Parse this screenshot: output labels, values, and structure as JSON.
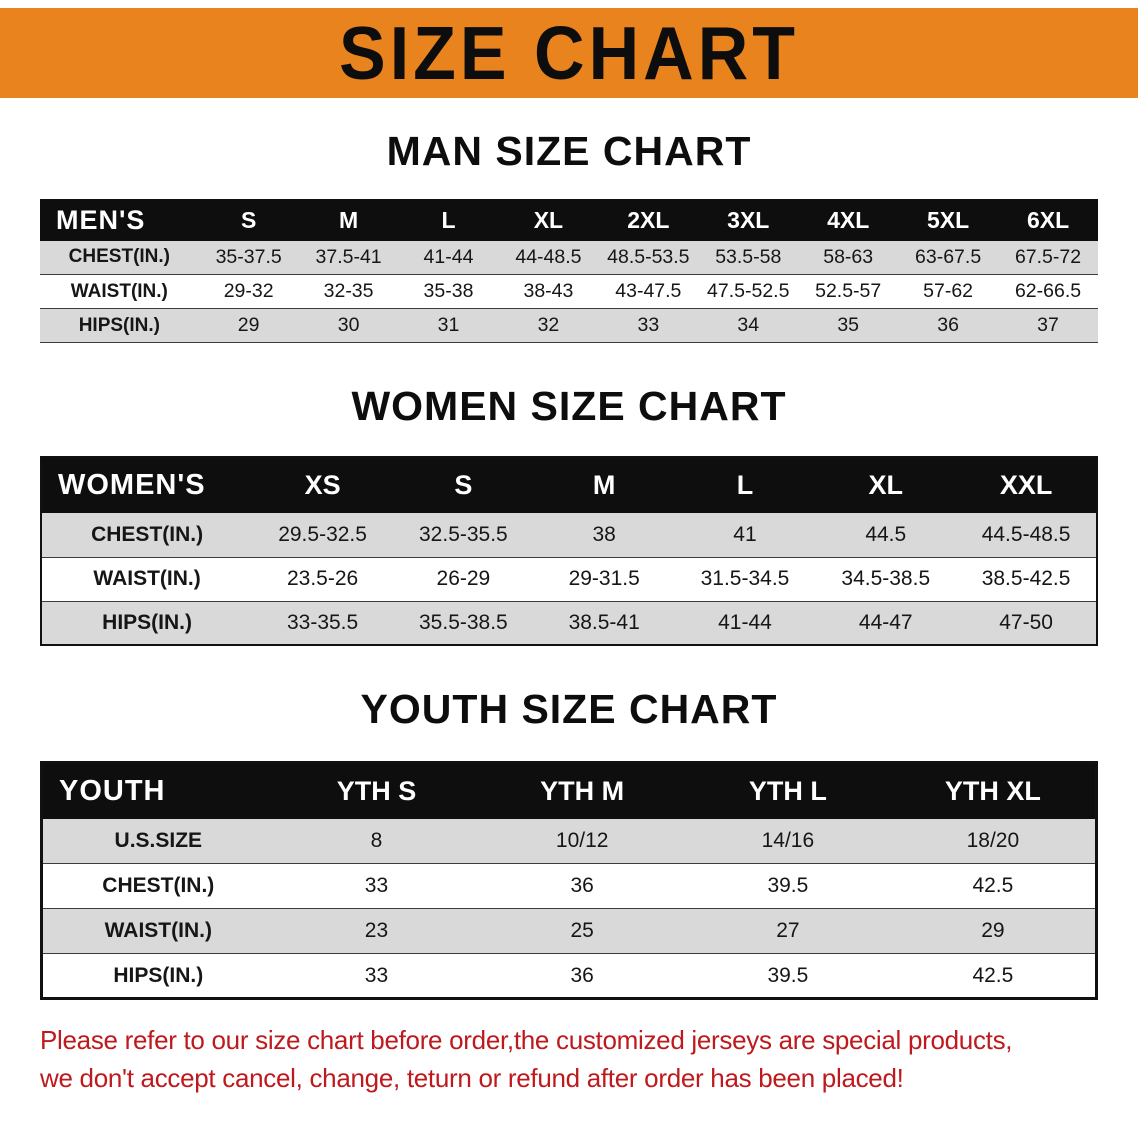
{
  "banner": {
    "title": "SIZE CHART"
  },
  "colors": {
    "banner_bg": "#E8831E",
    "stripe": "#D9D9D9",
    "disclaimer": "#BE1A1D"
  },
  "sections": [
    {
      "title": "MAN SIZE CHART",
      "table": {
        "header": [
          "MEN'S",
          "S",
          "M",
          "L",
          "XL",
          "2XL",
          "3XL",
          "4XL",
          "5XL",
          "6XL"
        ],
        "rows": [
          [
            "CHEST(IN.)",
            "35-37.5",
            "37.5-41",
            "41-44",
            "44-48.5",
            "48.5-53.5",
            "53.5-58",
            "58-63",
            "63-67.5",
            "67.5-72"
          ],
          [
            "WAIST(IN.)",
            "29-32",
            "32-35",
            "35-38",
            "38-43",
            "43-47.5",
            "47.5-52.5",
            "52.5-57",
            "57-62",
            "62-66.5"
          ],
          [
            "HIPS(IN.)",
            "29",
            "30",
            "31",
            "32",
            "33",
            "34",
            "35",
            "36",
            "37"
          ]
        ]
      }
    },
    {
      "title": "WOMEN SIZE CHART",
      "table": {
        "header": [
          "WOMEN'S",
          "XS",
          "S",
          "M",
          "L",
          "XL",
          "XXL"
        ],
        "rows": [
          [
            "CHEST(IN.)",
            "29.5-32.5",
            "32.5-35.5",
            "38",
            "41",
            "44.5",
            "44.5-48.5"
          ],
          [
            "WAIST(IN.)",
            "23.5-26",
            "26-29",
            "29-31.5",
            "31.5-34.5",
            "34.5-38.5",
            "38.5-42.5"
          ],
          [
            "HIPS(IN.)",
            "33-35.5",
            "35.5-38.5",
            "38.5-41",
            "41-44",
            "44-47",
            "47-50"
          ]
        ]
      }
    },
    {
      "title": "YOUTH SIZE CHART",
      "table": {
        "header": [
          "YOUTH",
          "YTH S",
          "YTH M",
          "YTH L",
          "YTH XL"
        ],
        "rows": [
          [
            "U.S.SIZE",
            "8",
            "10/12",
            "14/16",
            "18/20"
          ],
          [
            "CHEST(IN.)",
            "33",
            "36",
            "39.5",
            "42.5"
          ],
          [
            "WAIST(IN.)",
            "23",
            "25",
            "27",
            "29"
          ],
          [
            "HIPS(IN.)",
            "33",
            "36",
            "39.5",
            "42.5"
          ]
        ]
      }
    }
  ],
  "disclaimer_lines": [
    "Please refer to our size chart before order,the customized jerseys are special products,",
    "we don't accept cancel, change, teturn or refund after order has been placed!"
  ]
}
